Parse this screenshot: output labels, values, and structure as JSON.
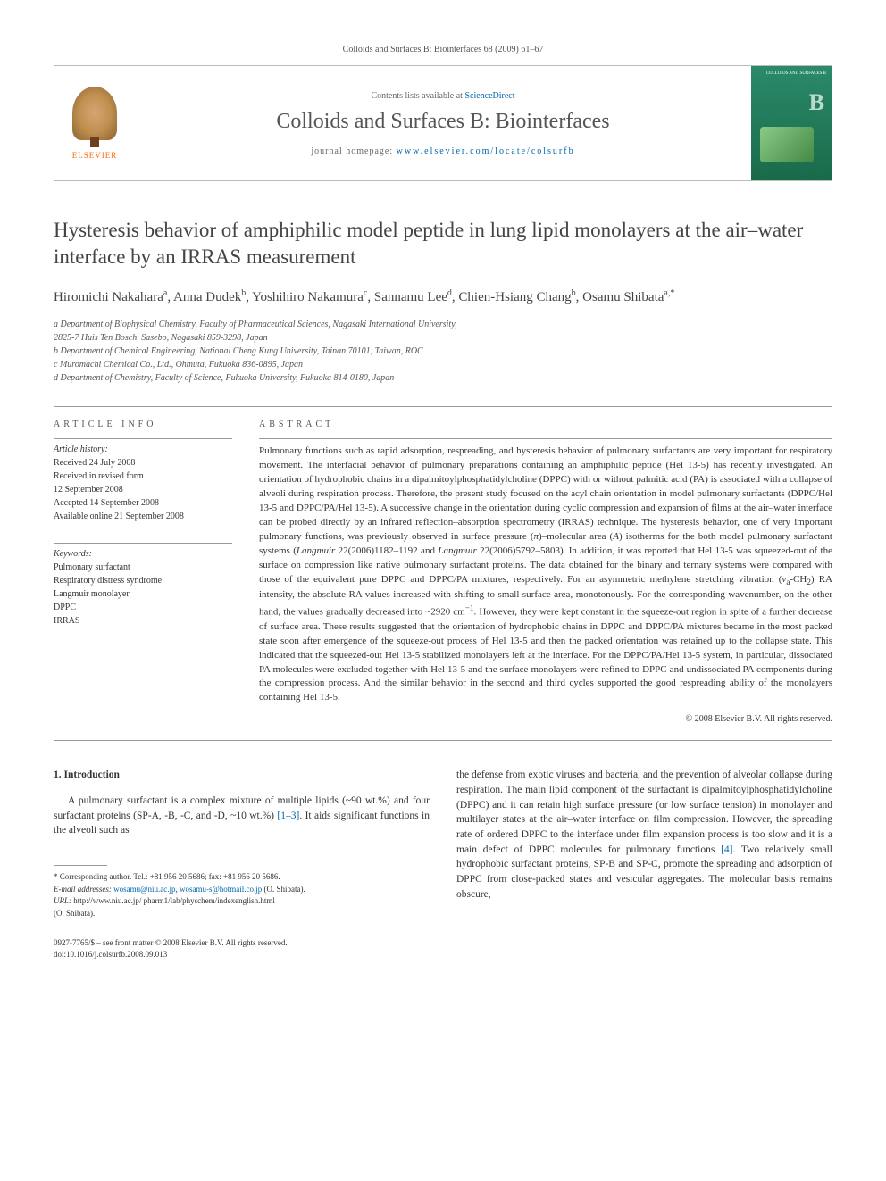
{
  "topCitation": "Colloids and Surfaces B: Biointerfaces 68 (2009) 61–67",
  "header": {
    "contentsPrefix": "Contents lists available at ",
    "contentsLink": "ScienceDirect",
    "journalName": "Colloids and Surfaces B: Biointerfaces",
    "homepagePrefix": "journal homepage: ",
    "homepageLink": "www.elsevier.com/locate/colsurfb",
    "elsevierLabel": "ELSEVIER",
    "coverTitle": "COLLOIDS AND SURFACES B",
    "coverLetter": "B"
  },
  "article": {
    "title": "Hysteresis behavior of amphiphilic model peptide in lung lipid monolayers at the air–water interface by an IRRAS measurement",
    "authorsHtml": "Hiromichi Nakahara<sup>a</sup>, Anna Dudek<sup>b</sup>, Yoshihiro Nakamura<sup>c</sup>, Sannamu Lee<sup>d</sup>, Chien-Hsiang Chang<sup>b</sup>, Osamu Shibata<sup>a,*</sup>",
    "affiliations": [
      "a Department of Biophysical Chemistry, Faculty of Pharmaceutical Sciences, Nagasaki International University,",
      "2825-7 Huis Ten Bosch, Sasebo, Nagasaki 859-3298, Japan",
      "b Department of Chemical Engineering, National Cheng Kung University, Tainan 70101, Taiwan, ROC",
      "c Muromachi Chemical Co., Ltd., Ohmuta, Fukuoka 836-0895, Japan",
      "d Department of Chemistry, Faculty of Science, Fukuoka University, Fukuoka 814-0180, Japan"
    ]
  },
  "info": {
    "heading": "article info",
    "historyLabel": "Article history:",
    "history": [
      "Received 24 July 2008",
      "Received in revised form",
      "12 September 2008",
      "Accepted 14 September 2008",
      "Available online 21 September 2008"
    ],
    "keywordsLabel": "Keywords:",
    "keywords": [
      "Pulmonary surfactant",
      "Respiratory distress syndrome",
      "Langmuir monolayer",
      "DPPC",
      "IRRAS"
    ]
  },
  "abstract": {
    "heading": "abstract",
    "text": "Pulmonary functions such as rapid adsorption, respreading, and hysteresis behavior of pulmonary surfactants are very important for respiratory movement. The interfacial behavior of pulmonary preparations containing an amphiphilic peptide (Hel 13-5) has recently investigated. An orientation of hydrophobic chains in a dipalmitoylphosphatidylcholine (DPPC) with or without palmitic acid (PA) is associated with a collapse of alveoli during respiration process. Therefore, the present study focused on the acyl chain orientation in model pulmonary surfactants (DPPC/Hel 13-5 and DPPC/PA/Hel 13-5). A successive change in the orientation during cyclic compression and expansion of films at the air–water interface can be probed directly by an infrared reflection–absorption spectrometry (IRRAS) technique. The hysteresis behavior, one of very important pulmonary functions, was previously observed in surface pressure (π)–molecular area (A) isotherms for the both model pulmonary surfactant systems (Langmuir 22(2006)1182–1192 and Langmuir 22(2006)5792–5803). In addition, it was reported that Hel 13-5 was squeezed-out of the surface on compression like native pulmonary surfactant proteins. The data obtained for the binary and ternary systems were compared with those of the equivalent pure DPPC and DPPC/PA mixtures, respectively. For an asymmetric methylene stretching vibration (νa-CH2) RA intensity, the absolute RA values increased with shifting to small surface area, monotonously. For the corresponding wavenumber, on the other hand, the values gradually decreased into ~2920 cm−1. However, they were kept constant in the squeeze-out region in spite of a further decrease of surface area. These results suggested that the orientation of hydrophobic chains in DPPC and DPPC/PA mixtures became in the most packed state soon after emergence of the squeeze-out process of Hel 13-5 and then the packed orientation was retained up to the collapse state. This indicated that the squeezed-out Hel 13-5 stabilized monolayers left at the interface. For the DPPC/PA/Hel 13-5 system, in particular, dissociated PA molecules were excluded together with Hel 13-5 and the surface monolayers were refined to DPPC and undissociated PA components during the compression process. And the similar behavior in the second and third cycles supported the good respreading ability of the monolayers containing Hel 13-5.",
    "copyright": "© 2008 Elsevier B.V. All rights reserved."
  },
  "body": {
    "sectionNum": "1.",
    "sectionTitle": "Introduction",
    "leftPara": "A pulmonary surfactant is a complex mixture of multiple lipids (~90 wt.%) and four surfactant proteins (SP-A, -B, -C, and -D, ~10 wt.%) [1–3]. It aids significant functions in the alveoli such as",
    "rightPara": "the defense from exotic viruses and bacteria, and the prevention of alveolar collapse during respiration. The main lipid component of the surfactant is dipalmitoylphosphatidylcholine (DPPC) and it can retain high surface pressure (or low surface tension) in monolayer and multilayer states at the air–water interface on film compression. However, the spreading rate of ordered DPPC to the interface under film expansion process is too slow and it is a main defect of DPPC molecules for pulmonary functions [4]. Two relatively small hydrophobic surfactant proteins, SP-B and SP-C, promote the spreading and adsorption of DPPC from close-packed states and vesicular aggregates. The molecular basis remains obscure,",
    "refs": {
      "r1": "[1–3]",
      "r4": "[4]"
    }
  },
  "footnotes": {
    "corr": "* Corresponding author. Tel.: +81 956 20 5686; fax: +81 956 20 5686.",
    "emailLabel": "E-mail addresses:",
    "email1": "wosamu@niu.ac.jp",
    "email2": "wosamu-s@hotmail.co.jp",
    "emailTail": "(O. Shibata).",
    "urlLabel": "URL:",
    "url": "http://www.niu.ac.jp/ pharm1/lab/physchem/indexenglish.html",
    "urlTail": "(O. Shibata)."
  },
  "footer": {
    "line1": "0927-7765/$ – see front matter © 2008 Elsevier B.V. All rights reserved.",
    "line2": "doi:10.1016/j.colsurfb.2008.09.013"
  }
}
